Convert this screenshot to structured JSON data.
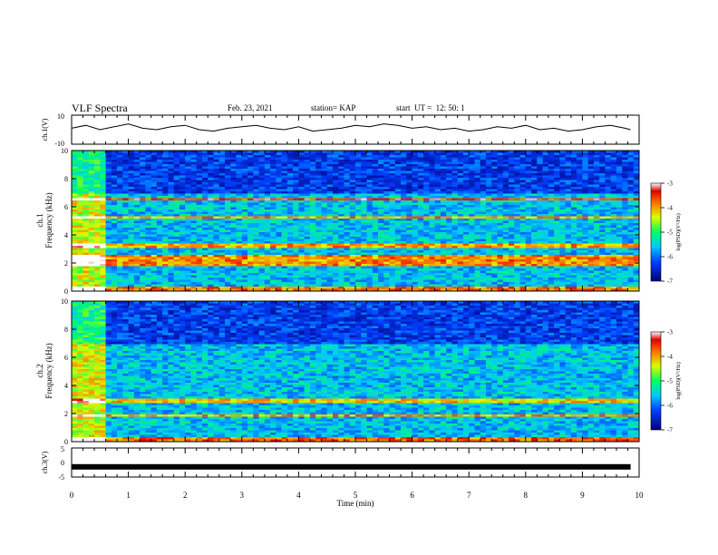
{
  "header": {
    "title": "VLF Spectra",
    "date": "Feb. 23, 2021",
    "station": "station= KAP",
    "start": "start  UT =  12: 50: 1"
  },
  "chart_data": [
    {
      "type": "line",
      "panel": "ch1-waveform",
      "title": "",
      "xlabel": "",
      "ylabel": "ch.1(V)",
      "xlim": [
        0,
        10
      ],
      "ylim": [
        -10,
        10
      ],
      "yticks": [
        "10",
        "-10"
      ],
      "x": [
        0,
        0.25,
        0.5,
        0.75,
        1,
        1.25,
        1.5,
        1.75,
        2,
        2.25,
        2.5,
        2.75,
        3,
        3.25,
        3.5,
        3.75,
        4,
        4.25,
        4.5,
        4.75,
        5,
        5.25,
        5.5,
        5.75,
        6,
        6.25,
        6.5,
        6.75,
        7,
        7.25,
        7.5,
        7.75,
        8,
        8.25,
        8.5,
        8.75,
        9,
        9.25,
        9.5,
        9.75,
        9.85
      ],
      "series": [
        {
          "values": [
            1,
            3,
            0,
            2,
            4,
            1,
            0,
            2,
            3,
            0,
            -1,
            1,
            2,
            3,
            1,
            0,
            2,
            -1,
            0,
            1,
            3,
            2,
            4,
            3,
            1,
            2,
            0,
            1,
            -1,
            0,
            2,
            1,
            3,
            0,
            1,
            -1,
            0,
            2,
            3,
            1,
            0
          ]
        }
      ]
    },
    {
      "type": "heatmap",
      "panel": "ch1-spectrogram",
      "title": "",
      "xlabel": "",
      "ylabel": "ch.1",
      "ylabel2": "Frequency (kHz)",
      "xlim": [
        0,
        10
      ],
      "ylim": [
        0,
        10
      ],
      "yticks": [
        "0",
        "2",
        "4",
        "6",
        "8",
        "10"
      ],
      "colorbar": {
        "label": "log(PSD)(V²/Hz)",
        "range": [
          -7,
          -3
        ],
        "ticks": [
          "-3",
          "-4",
          "-5",
          "-6",
          "-7"
        ]
      },
      "band_change_time": 0.6,
      "bands_khz": [
        {
          "from": 0.0,
          "to": 0.4,
          "level": -3.8
        },
        {
          "from": 1.7,
          "to": 2.5,
          "level": -3.9
        },
        {
          "from": 3.1,
          "to": 3.4,
          "level": -4.0
        },
        {
          "from": 5.2,
          "to": 5.4,
          "level": -4.0
        },
        {
          "from": 6.4,
          "to": 6.6,
          "level": -3.5
        }
      ]
    },
    {
      "type": "heatmap",
      "panel": "ch2-spectrogram",
      "title": "",
      "xlabel": "",
      "ylabel": "ch.2",
      "ylabel2": "Frequency (kHz)",
      "xlim": [
        0,
        10
      ],
      "ylim": [
        0,
        10
      ],
      "yticks": [
        "0",
        "2",
        "4",
        "6",
        "8",
        "10"
      ],
      "colorbar": {
        "label": "log(PSD)(V²/Hz)",
        "range": [
          -7,
          -3
        ],
        "ticks": [
          "-3",
          "-4",
          "-5",
          "-6",
          "-7"
        ]
      },
      "band_change_time": 0.6,
      "bands_khz": [
        {
          "from": 0.0,
          "to": 0.4,
          "level": -3.8
        },
        {
          "from": 1.8,
          "to": 2.0,
          "level": -4.0
        },
        {
          "from": 2.8,
          "to": 3.0,
          "level": -4.2
        }
      ]
    },
    {
      "type": "line",
      "panel": "ch3-waveform",
      "title": "",
      "xlabel": "Time (min)",
      "ylabel": "ch.3(V)",
      "xlim": [
        0,
        10
      ],
      "ylim": [
        -5,
        5
      ],
      "yticks": [
        "5",
        "0",
        "-5"
      ],
      "xticks": [
        "0",
        "1",
        "2",
        "3",
        "4",
        "5",
        "6",
        "7",
        "8",
        "9",
        "10"
      ],
      "x": [
        0,
        9.85
      ],
      "series": [
        {
          "values": [
            -1.5,
            -1.5
          ]
        }
      ]
    }
  ]
}
